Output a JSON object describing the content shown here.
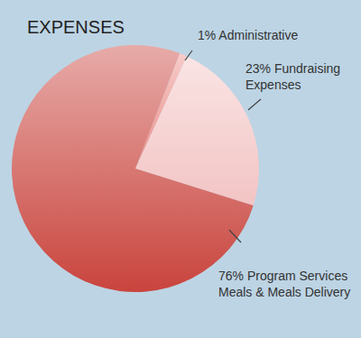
{
  "chart_data": {
    "type": "pie",
    "title": "EXPENSES",
    "categories": [
      "Administrative",
      "Fundraising Expenses",
      "Program Services Meals & Meals Delivery"
    ],
    "values": [
      1,
      23,
      76
    ],
    "value_labels": [
      "1%",
      "23%",
      "76%"
    ],
    "colors": [
      "#ec8c86",
      "#f3c4c4",
      "#c9443d"
    ],
    "data_labels": true
  }
}
